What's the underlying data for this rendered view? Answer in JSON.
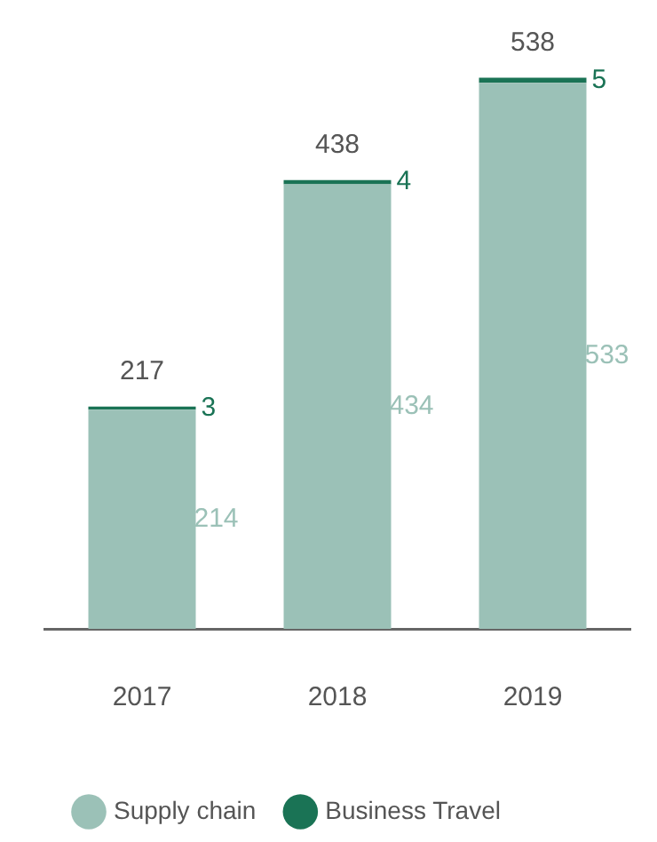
{
  "chart_data": {
    "type": "bar",
    "stacked": true,
    "categories": [
      "2017",
      "2018",
      "2019"
    ],
    "series": [
      {
        "name": "Supply chain",
        "color": "#9bc1b7",
        "values": [
          214,
          434,
          533
        ]
      },
      {
        "name": "Business Travel",
        "color": "#1a7355",
        "values": [
          3,
          4,
          5
        ]
      }
    ],
    "data_labels": true,
    "totals": [
      "217",
      "438",
      "538"
    ],
    "legend": "bottom",
    "grid": false
  }
}
